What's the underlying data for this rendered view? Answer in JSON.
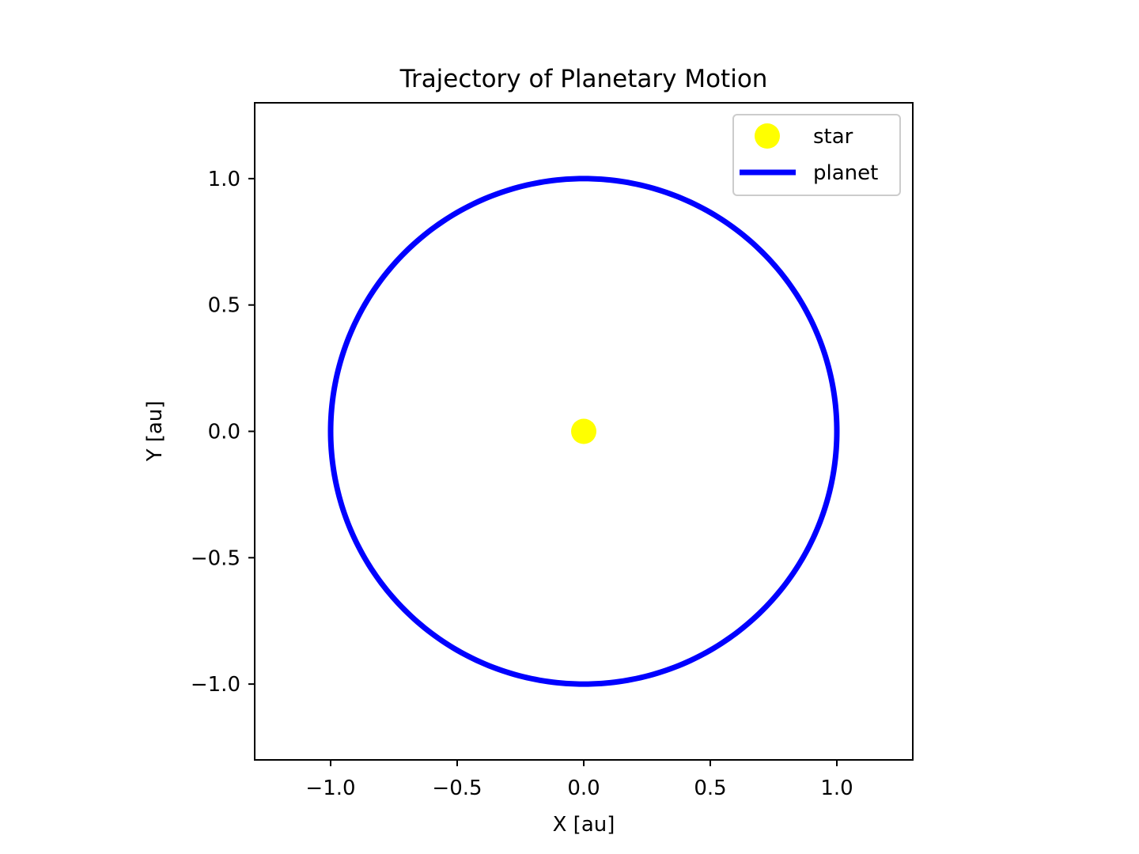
{
  "chart_data": {
    "type": "line",
    "title": "Trajectory of Planetary Motion",
    "xlabel": "X [au]",
    "ylabel": "Y [au]",
    "xlim": [
      -1.3,
      1.3
    ],
    "ylim": [
      -1.3,
      1.3
    ],
    "x_ticks": [
      -1.0,
      -0.5,
      0.0,
      0.5,
      1.0
    ],
    "y_ticks": [
      -1.0,
      -0.5,
      0.0,
      0.5,
      1.0
    ],
    "x_tick_labels": [
      "−1.0",
      "−0.5",
      "0.0",
      "0.5",
      "1.0"
    ],
    "y_tick_labels": [
      "−1.0",
      "−0.5",
      "0.0",
      "0.5",
      "1.0"
    ],
    "grid": false,
    "legend_position": "upper-right",
    "aspect": "equal",
    "series": [
      {
        "name": "star",
        "kind": "marker",
        "color": "#ffff00",
        "points": [
          [
            0.0,
            0.0
          ]
        ]
      },
      {
        "name": "planet",
        "kind": "line",
        "color": "#0000ff",
        "shape": "circle",
        "center": [
          0.0,
          0.0
        ],
        "radius": 1.0
      }
    ]
  }
}
